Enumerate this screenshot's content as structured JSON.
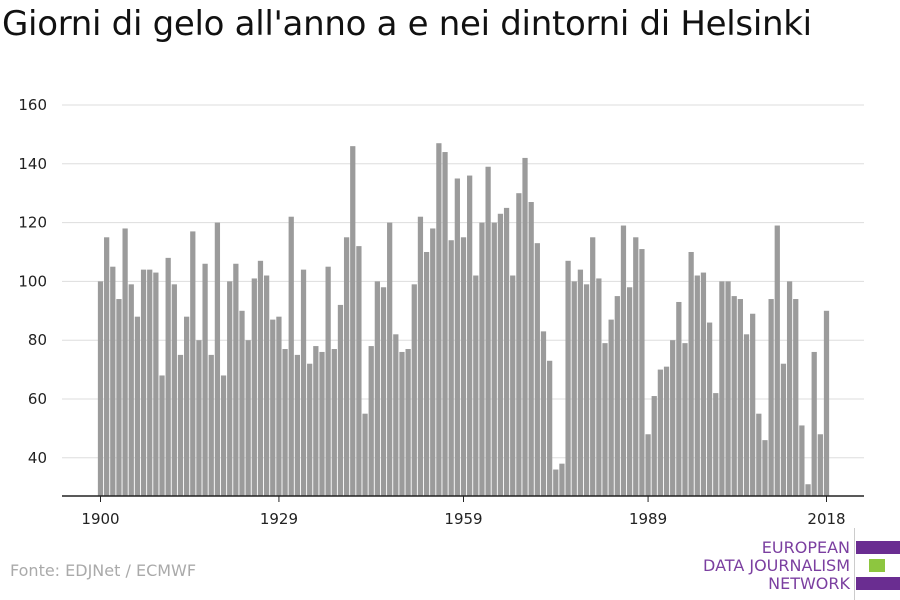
{
  "chart_data": {
    "type": "bar",
    "title": "Giorni di gelo all'anno a e nei dintorni di Helsinki",
    "x": [
      1900,
      1901,
      1902,
      1903,
      1904,
      1905,
      1906,
      1907,
      1908,
      1909,
      1910,
      1911,
      1912,
      1913,
      1914,
      1915,
      1916,
      1917,
      1918,
      1919,
      1920,
      1921,
      1922,
      1923,
      1924,
      1925,
      1926,
      1927,
      1928,
      1929,
      1930,
      1931,
      1932,
      1933,
      1934,
      1935,
      1936,
      1937,
      1938,
      1939,
      1940,
      1941,
      1942,
      1943,
      1944,
      1945,
      1946,
      1947,
      1948,
      1949,
      1950,
      1951,
      1952,
      1953,
      1954,
      1955,
      1956,
      1957,
      1958,
      1959,
      1960,
      1961,
      1962,
      1963,
      1964,
      1965,
      1966,
      1967,
      1968,
      1969,
      1970,
      1971,
      1972,
      1973,
      1974,
      1975,
      1976,
      1977,
      1978,
      1979,
      1980,
      1981,
      1982,
      1983,
      1984,
      1985,
      1986,
      1987,
      1988,
      1989,
      1990,
      1991,
      1992,
      1993,
      1994,
      1995,
      1996,
      1997,
      1998,
      1999,
      2000,
      2001,
      2002,
      2003,
      2004,
      2005,
      2006,
      2007,
      2008,
      2009,
      2010,
      2011,
      2012,
      2013,
      2014,
      2015,
      2016,
      2017,
      2018
    ],
    "values": [
      100,
      115,
      105,
      94,
      118,
      99,
      88,
      104,
      104,
      103,
      68,
      108,
      99,
      75,
      88,
      117,
      80,
      106,
      75,
      120,
      68,
      100,
      106,
      90,
      80,
      101,
      107,
      102,
      87,
      88,
      77,
      122,
      75,
      104,
      72,
      78,
      76,
      105,
      77,
      92,
      115,
      146,
      112,
      55,
      78,
      100,
      98,
      120,
      82,
      76,
      77,
      99,
      122,
      110,
      118,
      147,
      144,
      114,
      135,
      115,
      136,
      102,
      120,
      139,
      120,
      123,
      125,
      102,
      130,
      142,
      127,
      113,
      83,
      73,
      36,
      38,
      107,
      100,
      104,
      99,
      115,
      101,
      79,
      87,
      95,
      119,
      98,
      115,
      111,
      48,
      61,
      70,
      71,
      80,
      93,
      79,
      110,
      102,
      103,
      86,
      62,
      100,
      100,
      95,
      94,
      82,
      89,
      55,
      46,
      94,
      119,
      72,
      100,
      94,
      51,
      31,
      76,
      48,
      90
    ],
    "xticks": [
      "1900",
      "1929",
      "1959",
      "1989",
      "2018"
    ],
    "yticks": [
      "40",
      "60",
      "80",
      "100",
      "120",
      "140",
      "160"
    ],
    "ylim": [
      27,
      165
    ],
    "grid": true,
    "xlabel": "",
    "ylabel": "",
    "bar_color": "#9b9b9b",
    "grid_color": "#dddddd",
    "axis_color": "#222222"
  },
  "source": "Fonte: EDJNet / ECMWF",
  "logo": {
    "lines": [
      "EUROPEAN",
      "DATA JOURNALISM",
      "NETWORK"
    ],
    "text_color": "#7b3fa0",
    "bar_colors": [
      "#6a2d91",
      "#8dc63f",
      "#6a2d91"
    ]
  }
}
